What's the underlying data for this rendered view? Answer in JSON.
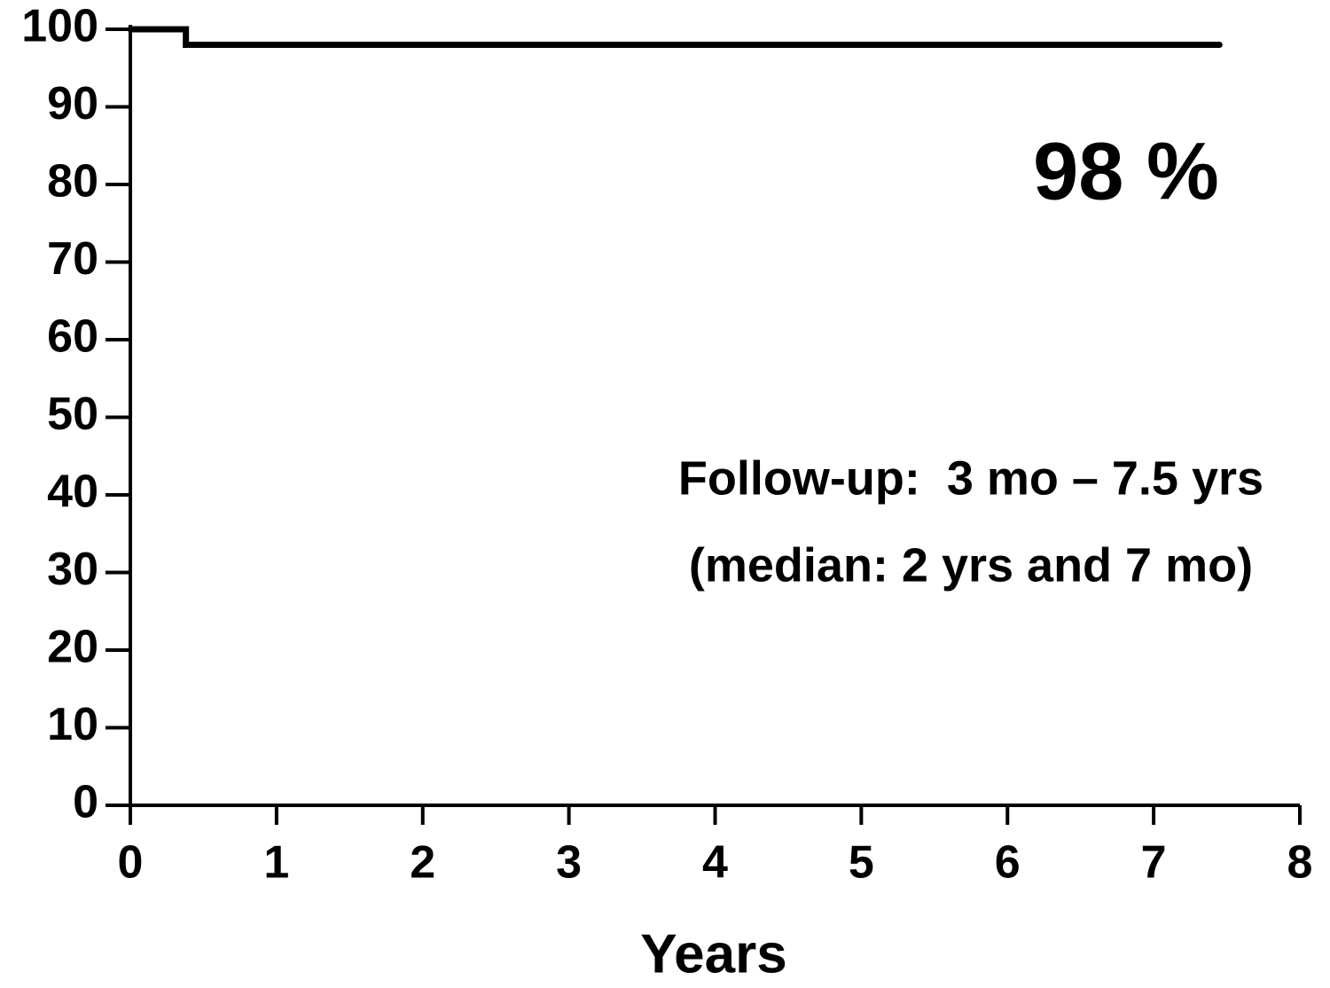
{
  "chart_data": {
    "type": "line",
    "x": [
      0,
      0.38,
      0.38,
      7.45
    ],
    "series": [
      {
        "color": "#000000",
        "values": [
          100,
          100,
          98,
          98
        ]
      }
    ],
    "xlim": [
      0,
      8
    ],
    "xticks": [
      0,
      1,
      2,
      3,
      4,
      5,
      6,
      7,
      8
    ],
    "ylim": [
      0,
      100
    ],
    "yticks": [
      0,
      10,
      20,
      30,
      40,
      50,
      60,
      70,
      80,
      90,
      100
    ],
    "x_label": "Years",
    "annotations": [
      "98 %",
      "Follow-up:  3 mo – 7.5 yrs",
      "(median: 2 yrs and 7 mo)"
    ],
    "grid": false
  }
}
